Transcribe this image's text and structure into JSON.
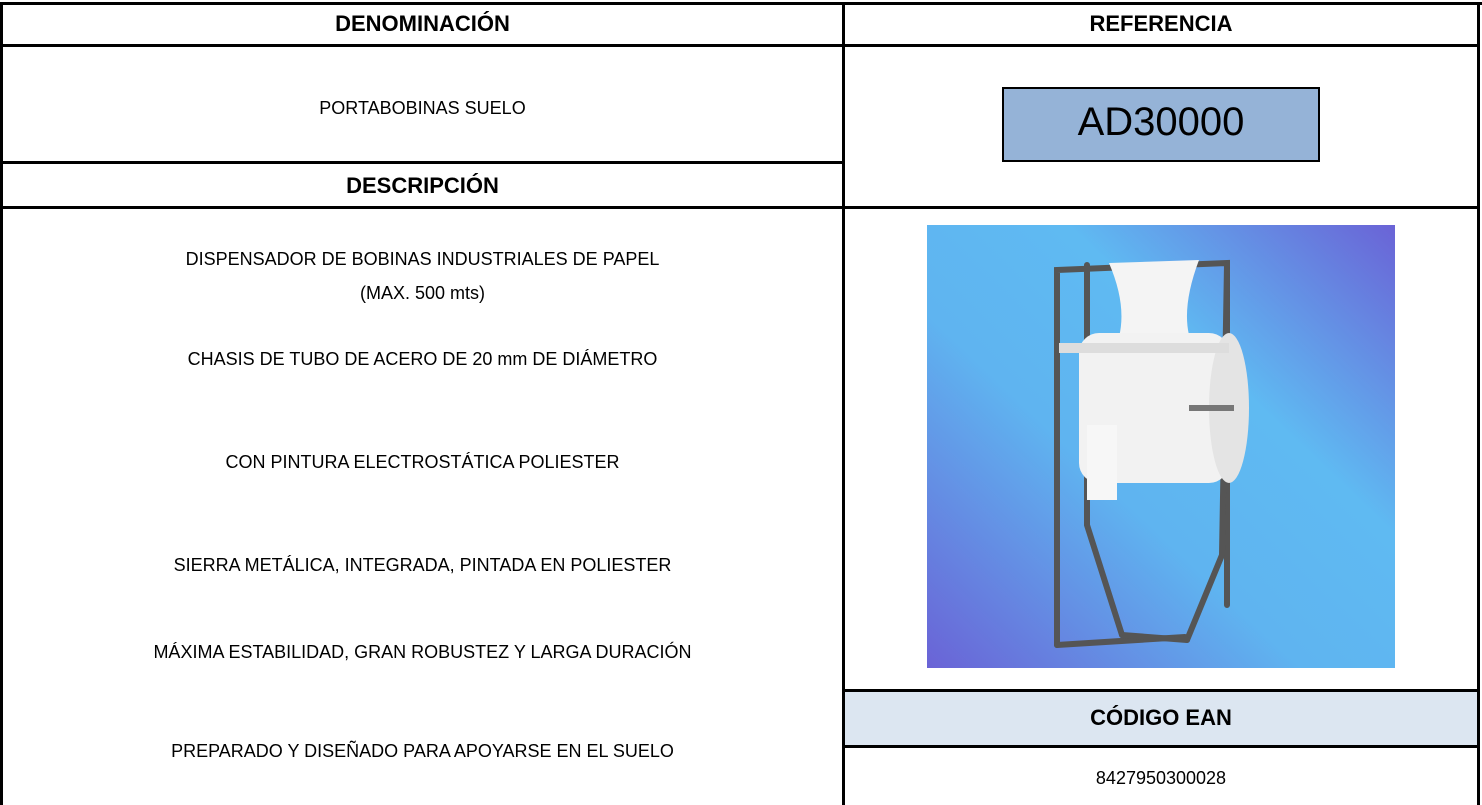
{
  "header": {
    "denominacion_label": "DENOMINACIÓN",
    "referencia_label": "REFERENCIA"
  },
  "product": {
    "denominacion": "PORTABOBINAS SUELO",
    "referencia": "AD30000"
  },
  "description": {
    "label": "DESCRIPCIÓN",
    "items": [
      [
        "DISPENSADOR DE BOBINAS INDUSTRIALES DE PAPEL",
        "(MAX. 500 mts)"
      ],
      [
        "CHASIS DE TUBO DE ACERO DE 20 mm DE DIÁMETRO"
      ],
      [
        "CON PINTURA ELECTROSTÁTICA POLIESTER"
      ],
      [
        "SIERRA METÁLICA, INTEGRADA, PINTADA EN POLIESTER"
      ],
      [
        "MÁXIMA ESTABILIDAD, GRAN ROBUSTEZ Y LARGA DURACIÓN"
      ],
      [
        "PREPARADO Y DISEÑADO PARA APOYARSE EN EL SUELO"
      ]
    ]
  },
  "ean": {
    "label": "CÓDIGO EAN",
    "code": "8427950300028"
  }
}
